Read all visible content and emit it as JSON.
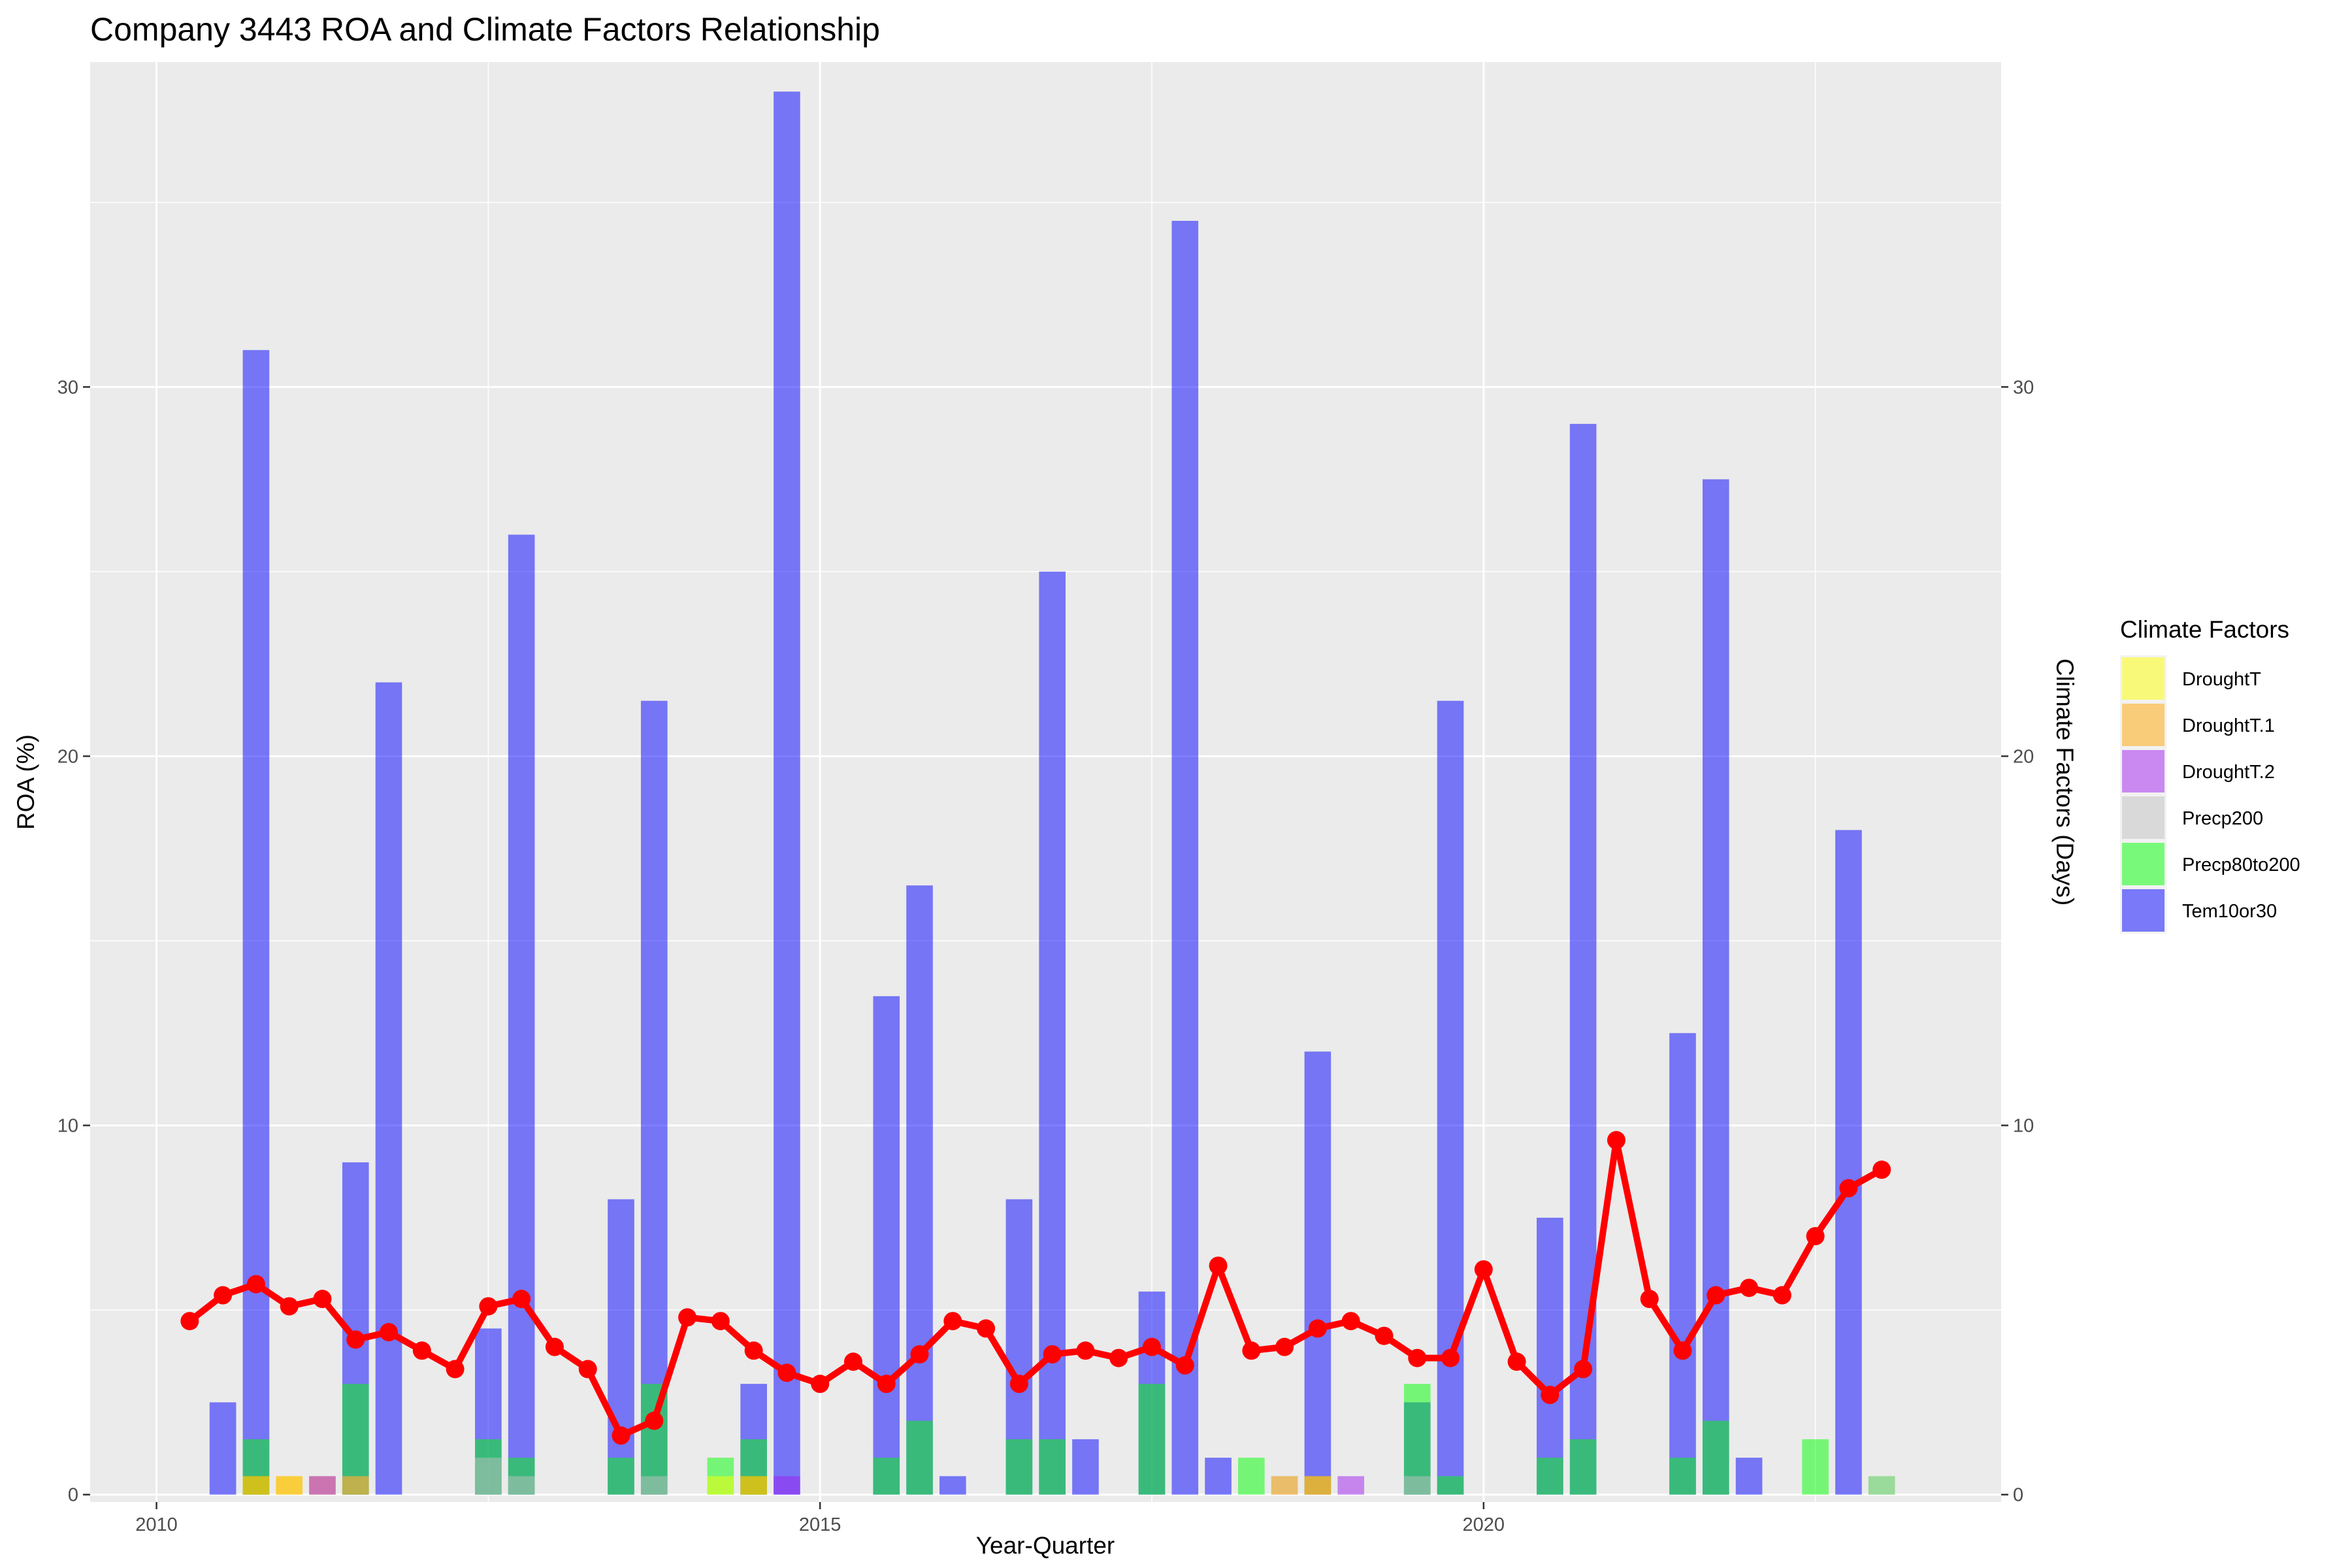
{
  "chart_data": {
    "type": "bar",
    "title": "Company 3443 ROA and Climate Factors Relationship",
    "xlabel": "Year-Quarter",
    "ylabel": "ROA (%)",
    "y2label": "Climate Factors (Days)",
    "xlim": [
      2009.5,
      2023.9
    ],
    "ylim": [
      -0.2,
      38.8
    ],
    "x_ticks": [
      2010,
      2015,
      2020
    ],
    "y_ticks": [
      0,
      10,
      20,
      30
    ],
    "y2_ticks": [
      0,
      10,
      20,
      30
    ],
    "grid": true,
    "legend": {
      "title": "Climate Factors",
      "placement": "right",
      "entries": [
        "DroughtT",
        "DroughtT.1",
        "DroughtT.2",
        "Precp200",
        "Precp80to200",
        "Tem10or30"
      ]
    },
    "colors": {
      "DroughtT": "#ffff00",
      "DroughtT.1": "#ffa500",
      "DroughtT.2": "#a020f0",
      "Precp200": "#c0c0c0",
      "Precp80to200": "#00ff00",
      "Tem10or30": "#0000ff",
      "roa_line": "#ff0000",
      "panel": "#ebebeb",
      "grid": "#ffffff"
    },
    "bars": [
      {
        "series": "Tem10or30",
        "x": 2010.5,
        "value": 2.5
      },
      {
        "series": "Tem10or30",
        "x": 2010.75,
        "value": 31.0
      },
      {
        "series": "Precp80to200",
        "x": 2010.75,
        "value": 1.5
      },
      {
        "series": "DroughtT",
        "x": 2010.75,
        "value": 0.5
      },
      {
        "series": "DroughtT.1",
        "x": 2010.75,
        "value": 0.5
      },
      {
        "series": "DroughtT",
        "x": 2011.0,
        "value": 0.5
      },
      {
        "series": "DroughtT.1",
        "x": 2011.0,
        "value": 0.5
      },
      {
        "series": "DroughtT.2",
        "x": 2011.25,
        "value": 0.5
      },
      {
        "series": "DroughtT.1",
        "x": 2011.25,
        "value": 0.5
      },
      {
        "series": "Tem10or30",
        "x": 2011.5,
        "value": 9.0
      },
      {
        "series": "Precp80to200",
        "x": 2011.5,
        "value": 3.0
      },
      {
        "series": "Precp200",
        "x": 2011.5,
        "value": 0.5
      },
      {
        "series": "DroughtT.1",
        "x": 2011.5,
        "value": 0.5
      },
      {
        "series": "Tem10or30",
        "x": 2011.75,
        "value": 22.0
      },
      {
        "series": "Tem10or30",
        "x": 2012.5,
        "value": 4.5
      },
      {
        "series": "Precp80to200",
        "x": 2012.5,
        "value": 1.5
      },
      {
        "series": "Precp200",
        "x": 2012.5,
        "value": 1.0
      },
      {
        "series": "Tem10or30",
        "x": 2012.75,
        "value": 26.0
      },
      {
        "series": "Precp80to200",
        "x": 2012.75,
        "value": 1.0
      },
      {
        "series": "Precp200",
        "x": 2012.75,
        "value": 0.5
      },
      {
        "series": "Tem10or30",
        "x": 2013.5,
        "value": 8.0
      },
      {
        "series": "Precp80to200",
        "x": 2013.5,
        "value": 1.0
      },
      {
        "series": "Tem10or30",
        "x": 2013.75,
        "value": 21.5
      },
      {
        "series": "Precp80to200",
        "x": 2013.75,
        "value": 3.0
      },
      {
        "series": "Precp200",
        "x": 2013.75,
        "value": 0.5
      },
      {
        "series": "Precp80to200",
        "x": 2014.25,
        "value": 1.0
      },
      {
        "series": "DroughtT",
        "x": 2014.25,
        "value": 0.5
      },
      {
        "series": "Tem10or30",
        "x": 2014.5,
        "value": 3.0
      },
      {
        "series": "Precp80to200",
        "x": 2014.5,
        "value": 1.5
      },
      {
        "series": "DroughtT",
        "x": 2014.5,
        "value": 0.5
      },
      {
        "series": "DroughtT.1",
        "x": 2014.5,
        "value": 0.5
      },
      {
        "series": "Tem10or30",
        "x": 2014.75,
        "value": 38.0
      },
      {
        "series": "DroughtT.2",
        "x": 2014.75,
        "value": 0.5
      },
      {
        "series": "Tem10or30",
        "x": 2015.5,
        "value": 13.5
      },
      {
        "series": "Precp80to200",
        "x": 2015.5,
        "value": 1.0
      },
      {
        "series": "Tem10or30",
        "x": 2015.75,
        "value": 16.5
      },
      {
        "series": "Precp80to200",
        "x": 2015.75,
        "value": 2.0
      },
      {
        "series": "Tem10or30",
        "x": 2016.0,
        "value": 0.5
      },
      {
        "series": "Tem10or30",
        "x": 2016.5,
        "value": 8.0
      },
      {
        "series": "Precp80to200",
        "x": 2016.5,
        "value": 1.5
      },
      {
        "series": "Tem10or30",
        "x": 2016.75,
        "value": 25.0
      },
      {
        "series": "Precp80to200",
        "x": 2016.75,
        "value": 1.5
      },
      {
        "series": "Tem10or30",
        "x": 2017.0,
        "value": 1.5
      },
      {
        "series": "Tem10or30",
        "x": 2017.5,
        "value": 5.5
      },
      {
        "series": "Precp80to200",
        "x": 2017.5,
        "value": 3.0
      },
      {
        "series": "Tem10or30",
        "x": 2017.75,
        "value": 34.5
      },
      {
        "series": "Tem10or30",
        "x": 2018.0,
        "value": 1.0
      },
      {
        "series": "Precp80to200",
        "x": 2018.25,
        "value": 1.0
      },
      {
        "series": "Precp200",
        "x": 2018.5,
        "value": 0.5
      },
      {
        "series": "DroughtT.1",
        "x": 2018.5,
        "value": 0.5
      },
      {
        "series": "Tem10or30",
        "x": 2018.75,
        "value": 12.0
      },
      {
        "series": "DroughtT",
        "x": 2018.75,
        "value": 0.5
      },
      {
        "series": "DroughtT.1",
        "x": 2018.75,
        "value": 0.5
      },
      {
        "series": "DroughtT.2",
        "x": 2019.0,
        "value": 0.5
      },
      {
        "series": "Precp80to200",
        "x": 2019.5,
        "value": 3.0
      },
      {
        "series": "Tem10or30",
        "x": 2019.5,
        "value": 2.5
      },
      {
        "series": "Precp200",
        "x": 2019.5,
        "value": 0.5
      },
      {
        "series": "Tem10or30",
        "x": 2019.75,
        "value": 21.5
      },
      {
        "series": "Precp80to200",
        "x": 2019.75,
        "value": 0.5
      },
      {
        "series": "Tem10or30",
        "x": 2020.5,
        "value": 7.5
      },
      {
        "series": "Precp80to200",
        "x": 2020.5,
        "value": 1.0
      },
      {
        "series": "Tem10or30",
        "x": 2020.75,
        "value": 29.0
      },
      {
        "series": "Precp80to200",
        "x": 2020.75,
        "value": 1.5
      },
      {
        "series": "Tem10or30",
        "x": 2021.5,
        "value": 12.5
      },
      {
        "series": "Precp80to200",
        "x": 2021.5,
        "value": 1.0
      },
      {
        "series": "Tem10or30",
        "x": 2021.75,
        "value": 27.5
      },
      {
        "series": "Precp80to200",
        "x": 2021.75,
        "value": 2.0
      },
      {
        "series": "Tem10or30",
        "x": 2022.0,
        "value": 1.0
      },
      {
        "series": "Precp80to200",
        "x": 2022.5,
        "value": 1.5
      },
      {
        "series": "Tem10or30",
        "x": 2022.75,
        "value": 18.0
      },
      {
        "series": "Precp80to200",
        "x": 2023.0,
        "value": 0.5
      },
      {
        "series": "Precp200",
        "x": 2023.0,
        "value": 0.5
      }
    ],
    "roa_line": {
      "x": [
        2010.25,
        2010.5,
        2010.75,
        2011.0,
        2011.25,
        2011.5,
        2011.75,
        2012.0,
        2012.25,
        2012.5,
        2012.75,
        2013.0,
        2013.25,
        2013.5,
        2013.75,
        2014.0,
        2014.25,
        2014.5,
        2014.75,
        2015.0,
        2015.25,
        2015.5,
        2015.75,
        2016.0,
        2016.25,
        2016.5,
        2016.75,
        2017.0,
        2017.25,
        2017.5,
        2017.75,
        2018.0,
        2018.25,
        2018.5,
        2018.75,
        2019.0,
        2019.25,
        2019.5,
        2019.75,
        2020.0,
        2020.25,
        2020.5,
        2020.75,
        2021.0,
        2021.25,
        2021.5,
        2021.75,
        2022.0,
        2022.25,
        2022.5,
        2022.75,
        2023.0
      ],
      "y": [
        4.7,
        5.4,
        5.7,
        5.1,
        5.3,
        4.2,
        4.4,
        3.9,
        3.4,
        5.1,
        5.3,
        4.0,
        3.4,
        1.6,
        2.0,
        4.8,
        4.7,
        3.9,
        3.3,
        3.0,
        3.6,
        3.0,
        3.8,
        4.7,
        4.5,
        3.0,
        3.8,
        3.9,
        3.7,
        4.0,
        3.5,
        6.2,
        3.9,
        4.0,
        4.5,
        4.7,
        4.3,
        3.7,
        3.7,
        6.1,
        3.6,
        2.7,
        3.4,
        9.6,
        5.3,
        3.9,
        5.4,
        5.6,
        5.4,
        7.0,
        8.3,
        8.8
      ]
    }
  }
}
